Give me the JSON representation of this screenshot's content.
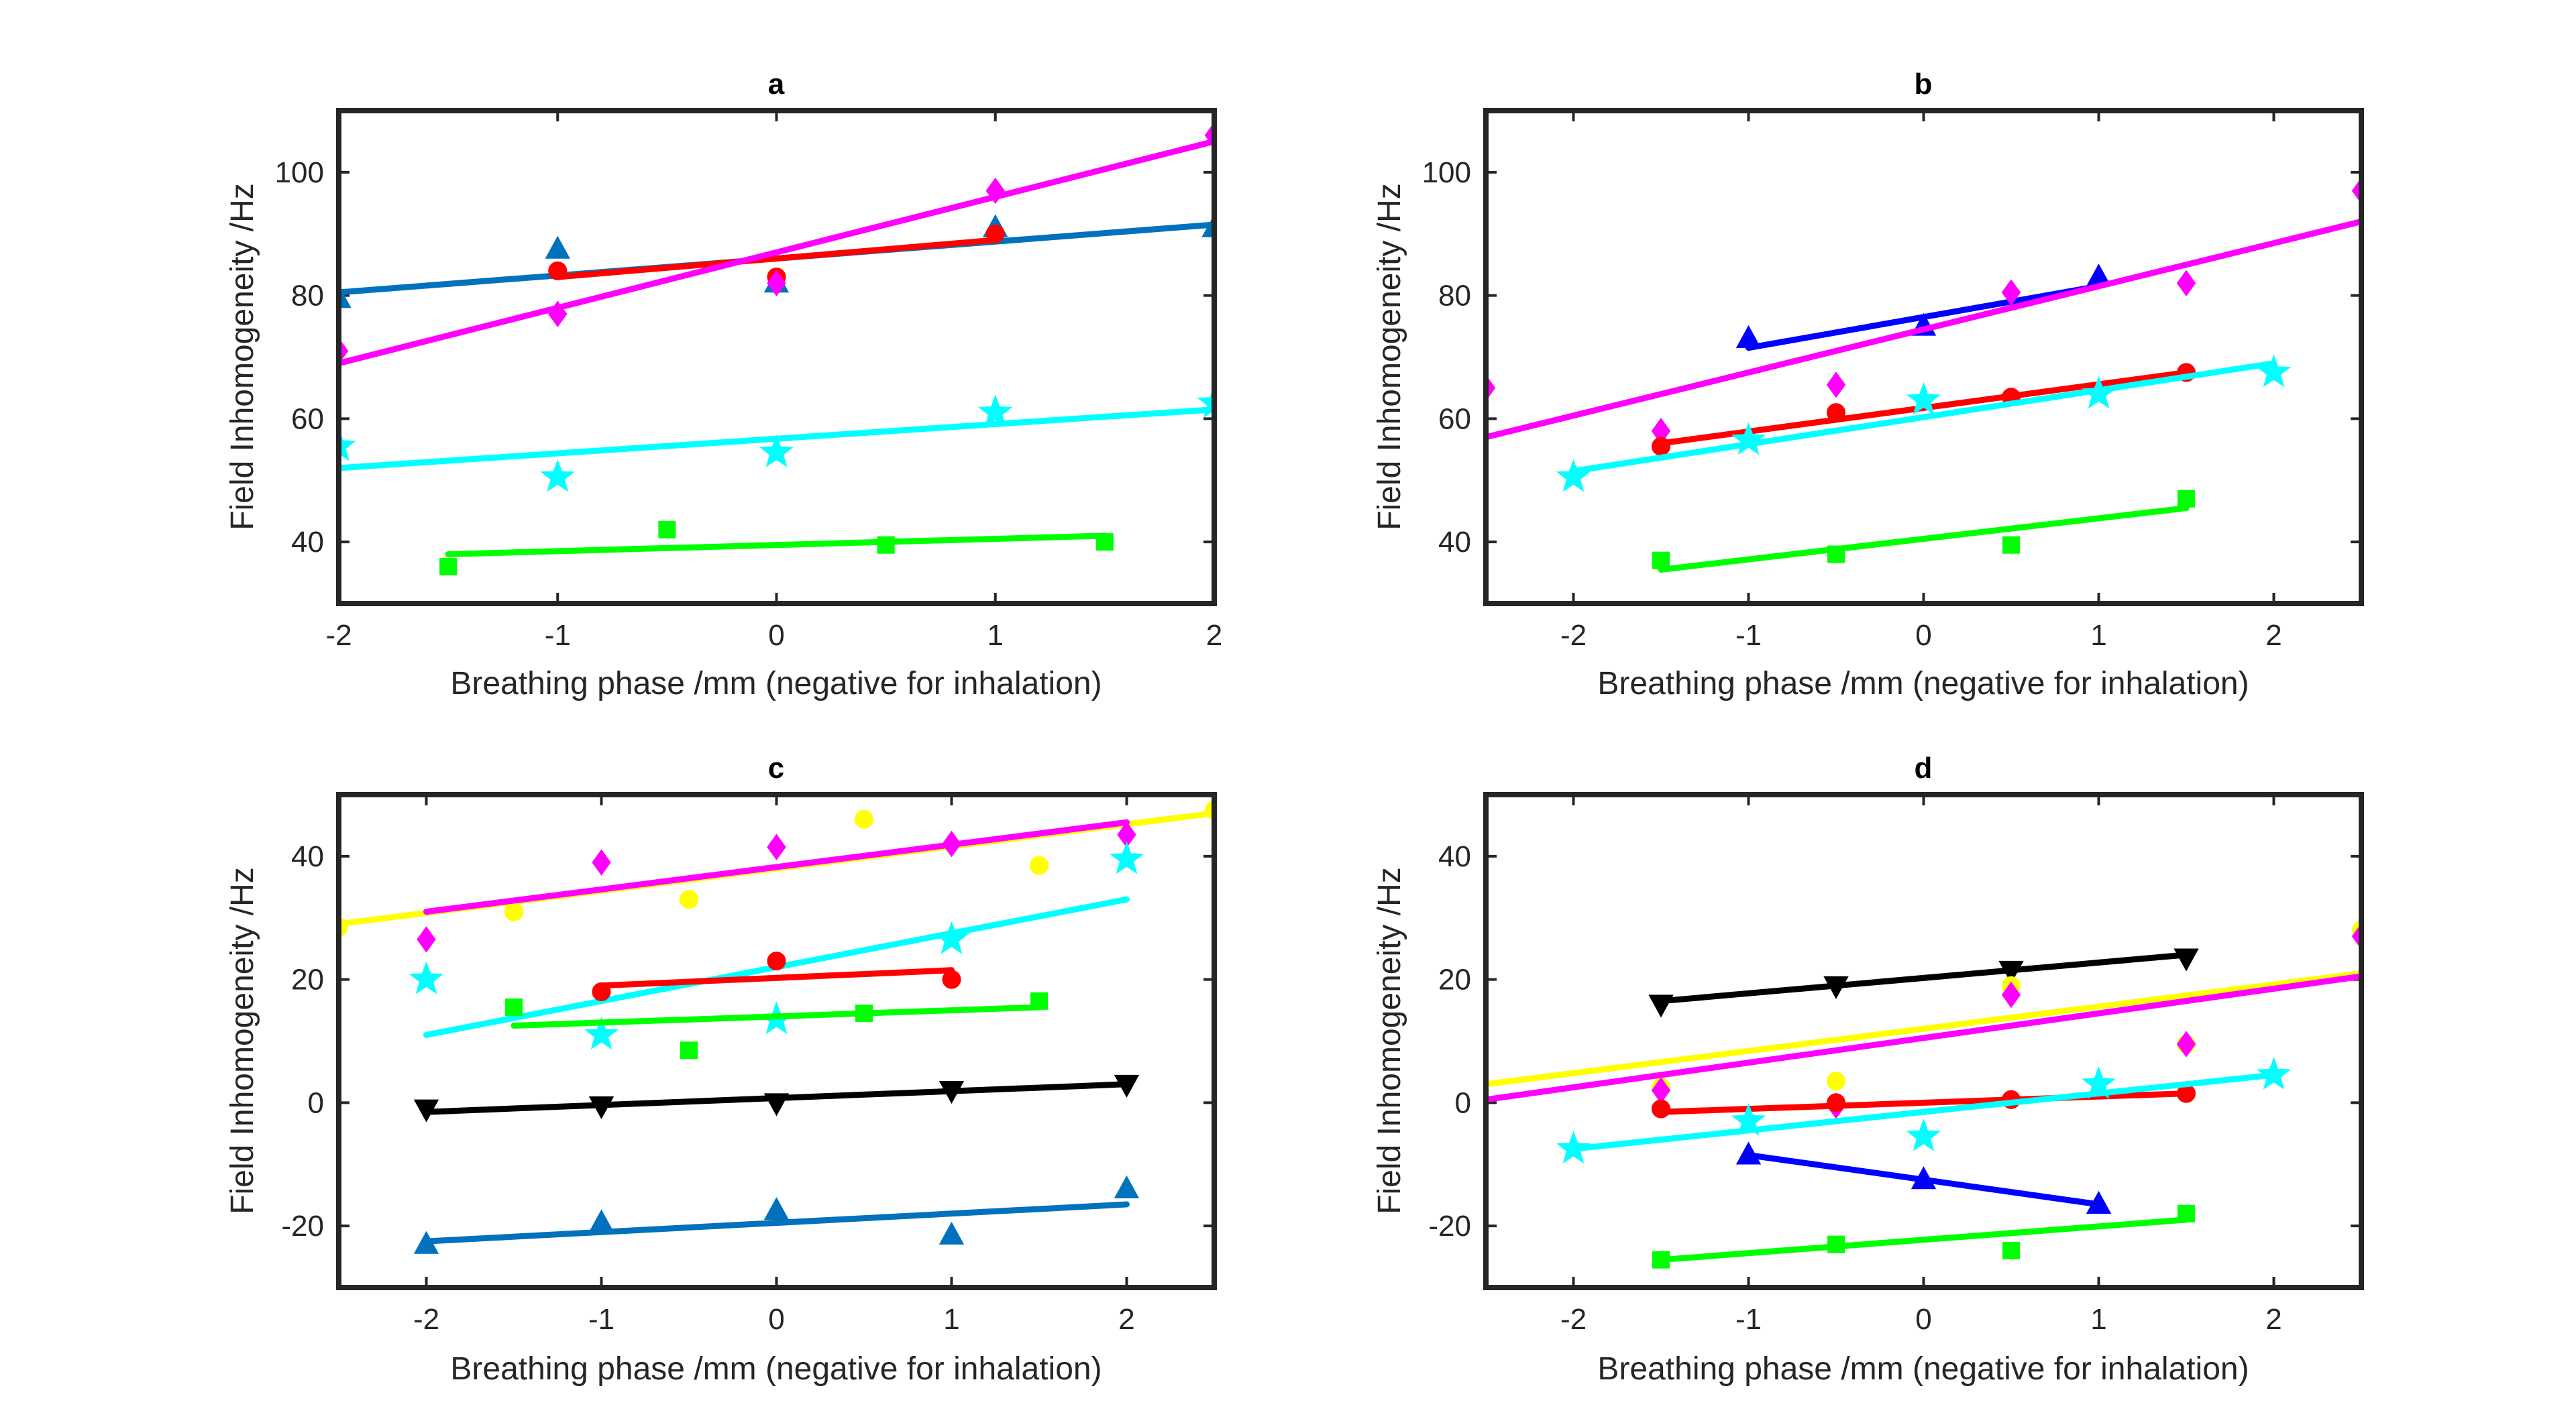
{
  "chart_data": [
    {
      "type": "scatter",
      "title": "a",
      "xlabel": "Breathing phase /mm (negative for inhalation)",
      "ylabel": "Field Inhomogeneity /Hz",
      "xlim": [
        -2,
        2
      ],
      "ylim": [
        30,
        110
      ],
      "xticks": [
        -2,
        -1,
        0,
        1,
        2
      ],
      "xtick_labels": [
        "-2",
        "-1",
        "0",
        "1",
        "2"
      ],
      "yticks": [
        40,
        60,
        80,
        100
      ],
      "ytick_labels": [
        "40",
        "60",
        "80",
        "100"
      ],
      "grid": false,
      "series": [
        {
          "name": "blue-triangle",
          "color": "#0072BD",
          "marker": "triangle-up",
          "x": [
            -2,
            -1,
            0,
            1,
            2
          ],
          "y": [
            79.5,
            87.5,
            82.0,
            91.0,
            91.0
          ],
          "fit": [
            [
              -2,
              80.5
            ],
            [
              2,
              91.5
            ]
          ]
        },
        {
          "name": "red-circle",
          "color": "#FF0000",
          "marker": "circle",
          "x": [
            -1,
            0,
            1
          ],
          "y": [
            84.0,
            83.0,
            90.0
          ],
          "fit": [
            [
              -1,
              83.0
            ],
            [
              1,
              89.0
            ]
          ]
        },
        {
          "name": "magenta-diamond",
          "color": "#FF00FF",
          "marker": "diamond",
          "x": [
            -2,
            -1,
            0,
            1,
            2
          ],
          "y": [
            71.0,
            77.0,
            82.0,
            97.0,
            106.0
          ],
          "fit": [
            [
              -2,
              69.0
            ],
            [
              2,
              105.0
            ]
          ]
        },
        {
          "name": "cyan-star",
          "color": "#00FFFF",
          "marker": "star",
          "x": [
            -2,
            -1,
            0,
            1,
            2
          ],
          "y": [
            55.5,
            50.5,
            54.5,
            61.0,
            62.5
          ],
          "fit": [
            [
              -2,
              52.0
            ],
            [
              2,
              61.5
            ]
          ]
        },
        {
          "name": "green-square",
          "color": "#00FF00",
          "marker": "square",
          "x": [
            -1.5,
            -0.5,
            0.5,
            1.5
          ],
          "y": [
            36.0,
            42.0,
            39.5,
            40.0
          ],
          "fit": [
            [
              -1.5,
              38.0
            ],
            [
              1.5,
              41.0
            ]
          ]
        }
      ]
    },
    {
      "type": "scatter",
      "title": "b",
      "xlabel": "Breathing phase /mm (negative for inhalation)",
      "ylabel": "Field Inhomogeneity /Hz",
      "xlim": [
        -2.5,
        2.5
      ],
      "ylim": [
        30,
        110
      ],
      "xticks": [
        -2,
        -1,
        0,
        1,
        2
      ],
      "xtick_labels": [
        "-2",
        "-1",
        "0",
        "1",
        "2"
      ],
      "yticks": [
        40,
        60,
        80,
        100
      ],
      "ytick_labels": [
        "40",
        "60",
        "80",
        "100"
      ],
      "grid": false,
      "series": [
        {
          "name": "blue-triangle",
          "color": "#0000FF",
          "marker": "triangle-up",
          "x": [
            -1,
            0,
            1
          ],
          "y": [
            73.0,
            75.0,
            83.0
          ],
          "fit": [
            [
              -1,
              71.5
            ],
            [
              1,
              81.5
            ]
          ]
        },
        {
          "name": "magenta-diamond",
          "color": "#FF00FF",
          "marker": "diamond",
          "x": [
            -2.5,
            -1.5,
            -0.5,
            0.5,
            1.5,
            2.5
          ],
          "y": [
            65.0,
            58.0,
            65.5,
            80.5,
            82.0,
            97.0
          ],
          "fit": [
            [
              -2.5,
              57.0
            ],
            [
              2.5,
              92.0
            ]
          ]
        },
        {
          "name": "red-circle",
          "color": "#FF0000",
          "marker": "circle",
          "x": [
            -1.5,
            -0.5,
            0.5,
            1.5
          ],
          "y": [
            55.5,
            61.0,
            63.5,
            67.5
          ],
          "fit": [
            [
              -1.5,
              56.0
            ],
            [
              1.5,
              67.5
            ]
          ]
        },
        {
          "name": "cyan-star",
          "color": "#00FFFF",
          "marker": "star",
          "x": [
            -2,
            -1,
            0,
            1,
            2
          ],
          "y": [
            50.5,
            56.5,
            63.0,
            64.0,
            67.5
          ],
          "fit": [
            [
              -2,
              51.5
            ],
            [
              2,
              69.0
            ]
          ]
        },
        {
          "name": "green-square",
          "color": "#00FF00",
          "marker": "square",
          "x": [
            -1.5,
            -0.5,
            0.5,
            1.5
          ],
          "y": [
            37.0,
            38.0,
            39.5,
            47.0
          ],
          "fit": [
            [
              -1.5,
              35.5
            ],
            [
              1.5,
              45.5
            ]
          ]
        }
      ]
    },
    {
      "type": "scatter",
      "title": "c",
      "xlabel": "Breathing phase /mm (negative for inhalation)",
      "ylabel": "Field Inhomogeneity /Hz",
      "xlim": [
        -2.5,
        2.5
      ],
      "ylim": [
        -30,
        50
      ],
      "xticks": [
        -2,
        -1,
        0,
        1,
        2
      ],
      "xtick_labels": [
        "-2",
        "-1",
        "0",
        "1",
        "2"
      ],
      "yticks": [
        -20,
        0,
        20,
        40
      ],
      "ytick_labels": [
        "-20",
        "0",
        "20",
        "40"
      ],
      "grid": false,
      "series": [
        {
          "name": "yellow-circle",
          "color": "#FFFF00",
          "marker": "circle",
          "x": [
            -2.5,
            -1.5,
            -0.5,
            0.5,
            1.5,
            2.5
          ],
          "y": [
            28.5,
            31.0,
            33.0,
            46.0,
            38.5,
            47.5
          ],
          "fit": [
            [
              -2.5,
              29.0
            ],
            [
              2.5,
              47.0
            ]
          ]
        },
        {
          "name": "magenta-diamond",
          "color": "#FF00FF",
          "marker": "diamond",
          "x": [
            -2,
            -1,
            0,
            1,
            2
          ],
          "y": [
            26.5,
            39.0,
            41.5,
            42.0,
            43.5
          ],
          "fit": [
            [
              -2,
              31.0
            ],
            [
              2,
              45.5
            ]
          ]
        },
        {
          "name": "cyan-star",
          "color": "#00FFFF",
          "marker": "star",
          "x": [
            -2,
            -1,
            0,
            1,
            2
          ],
          "y": [
            20.0,
            11.0,
            13.5,
            26.5,
            39.5
          ],
          "fit": [
            [
              -2,
              11.0
            ],
            [
              2,
              33.0
            ]
          ]
        },
        {
          "name": "red-circle",
          "color": "#FF0000",
          "marker": "circle",
          "x": [
            -1,
            0,
            1
          ],
          "y": [
            18.0,
            23.0,
            20.0
          ],
          "fit": [
            [
              -1,
              19.0
            ],
            [
              1,
              21.5
            ]
          ]
        },
        {
          "name": "green-square",
          "color": "#00FF00",
          "marker": "square",
          "x": [
            -1.5,
            -0.5,
            0.5,
            1.5
          ],
          "y": [
            15.5,
            8.5,
            14.5,
            16.5
          ],
          "fit": [
            [
              -1.5,
              12.5
            ],
            [
              1.5,
              15.5
            ]
          ]
        },
        {
          "name": "black-triangle-down",
          "color": "#000000",
          "marker": "triangle-down",
          "x": [
            -2,
            -1,
            0,
            1,
            2
          ],
          "y": [
            -1.0,
            -0.5,
            0.0,
            2.0,
            3.0
          ],
          "fit": [
            [
              -2,
              -1.5
            ],
            [
              2,
              3.0
            ]
          ]
        },
        {
          "name": "blue-triangle",
          "color": "#0072BD",
          "marker": "triangle-up",
          "x": [
            -2,
            -1,
            0,
            1,
            2
          ],
          "y": [
            -23.0,
            -19.5,
            -17.5,
            -21.5,
            -14.0
          ],
          "fit": [
            [
              -2,
              -22.5
            ],
            [
              2,
              -16.5
            ]
          ]
        }
      ]
    },
    {
      "type": "scatter",
      "title": "d",
      "xlabel": "Breathing phase /mm (negative for inhalation)",
      "ylabel": "Field Inhomogeneity /Hz",
      "xlim": [
        -2.5,
        2.5
      ],
      "ylim": [
        -30,
        50
      ],
      "xticks": [
        -2,
        -1,
        0,
        1,
        2
      ],
      "xtick_labels": [
        "-2",
        "-1",
        "0",
        "1",
        "2"
      ],
      "yticks": [
        -20,
        0,
        20,
        40
      ],
      "ytick_labels": [
        "-20",
        "0",
        "20",
        "40"
      ],
      "grid": false,
      "series": [
        {
          "name": "black-triangle-down",
          "color": "#000000",
          "marker": "triangle-down",
          "x": [
            -1.5,
            -0.5,
            0.5,
            1.5
          ],
          "y": [
            16.0,
            19.0,
            21.5,
            23.5
          ],
          "fit": [
            [
              -1.5,
              16.5
            ],
            [
              1.5,
              24.0
            ]
          ]
        },
        {
          "name": "yellow-circle",
          "color": "#FFFF00",
          "marker": "circle",
          "x": [
            -1.5,
            -0.5,
            0.5,
            1.5,
            2.5
          ],
          "y": [
            2.5,
            3.5,
            19.0,
            9.5,
            28.0
          ],
          "fit": [
            [
              -2.5,
              3.0
            ],
            [
              2.5,
              21.0
            ]
          ]
        },
        {
          "name": "magenta-diamond",
          "color": "#FF00FF",
          "marker": "diamond",
          "x": [
            -1.5,
            -0.5,
            0.5,
            1.5,
            2.5
          ],
          "y": [
            2.0,
            -0.5,
            17.5,
            9.5,
            27.0
          ],
          "fit": [
            [
              -2.5,
              0.5
            ],
            [
              2.5,
              20.5
            ]
          ]
        },
        {
          "name": "red-circle",
          "color": "#FF0000",
          "marker": "circle",
          "x": [
            -1.5,
            -0.5,
            0.5,
            1.5
          ],
          "y": [
            -1.0,
            0.0,
            0.5,
            1.5
          ],
          "fit": [
            [
              -1.5,
              -1.5
            ],
            [
              1.5,
              1.5
            ]
          ]
        },
        {
          "name": "cyan-star",
          "color": "#00FFFF",
          "marker": "star",
          "x": [
            -2,
            -1,
            0,
            1,
            2
          ],
          "y": [
            -7.5,
            -3.0,
            -5.5,
            3.0,
            4.5
          ],
          "fit": [
            [
              -2,
              -7.5
            ],
            [
              2,
              4.5
            ]
          ]
        },
        {
          "name": "blue-triangle",
          "color": "#0000FF",
          "marker": "triangle-up",
          "x": [
            -1,
            0,
            1
          ],
          "y": [
            -8.5,
            -12.5,
            -16.5
          ],
          "fit": [
            [
              -1,
              -8.5
            ],
            [
              0,
              -12.5
            ],
            [
              1,
              -16.5
            ]
          ]
        },
        {
          "name": "green-square",
          "color": "#00FF00",
          "marker": "square",
          "x": [
            -1.5,
            -0.5,
            0.5,
            1.5
          ],
          "y": [
            -25.5,
            -23.0,
            -24.0,
            -18.0
          ],
          "fit": [
            [
              -1.5,
              -25.5
            ],
            [
              1.5,
              -19.0
            ]
          ]
        }
      ]
    }
  ]
}
